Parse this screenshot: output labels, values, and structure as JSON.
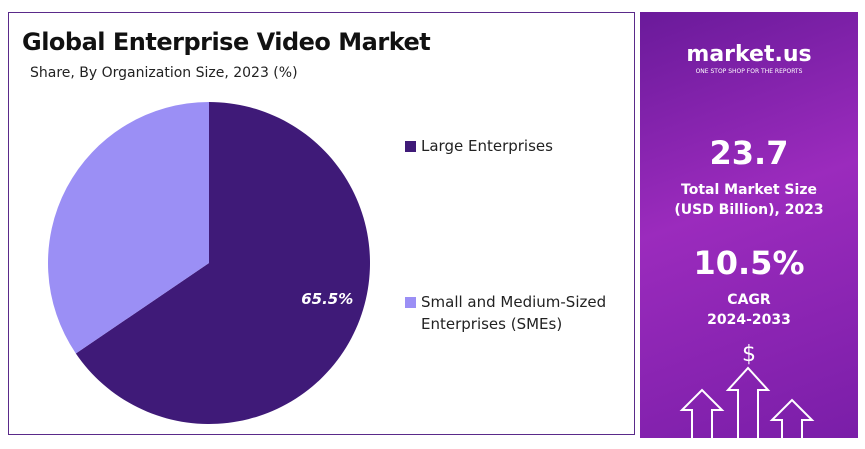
{
  "chart_data": {
    "type": "pie",
    "title": "Global Enterprise Video Market",
    "subtitle": "Share, By Organization Size, 2023 (%)",
    "categories": [
      "Large Enterprises",
      "Small and Medium-Sized Enterprises (SMEs)"
    ],
    "values": [
      65.5,
      34.5
    ],
    "value_labels": [
      "65.5%",
      null
    ],
    "colors": [
      "#3f1a78",
      "#9b8ff5"
    ],
    "legend": "right"
  },
  "panel": {
    "brand": "market.us",
    "tagline": "ONE STOP SHOP FOR THE REPORTS",
    "market_size": "23.7",
    "market_size_label": [
      "Total Market Size",
      "(USD Billion), 2023"
    ],
    "cagr": "10.5%",
    "cagr_label": [
      "CAGR",
      "2024-2033"
    ],
    "currency": "$"
  }
}
